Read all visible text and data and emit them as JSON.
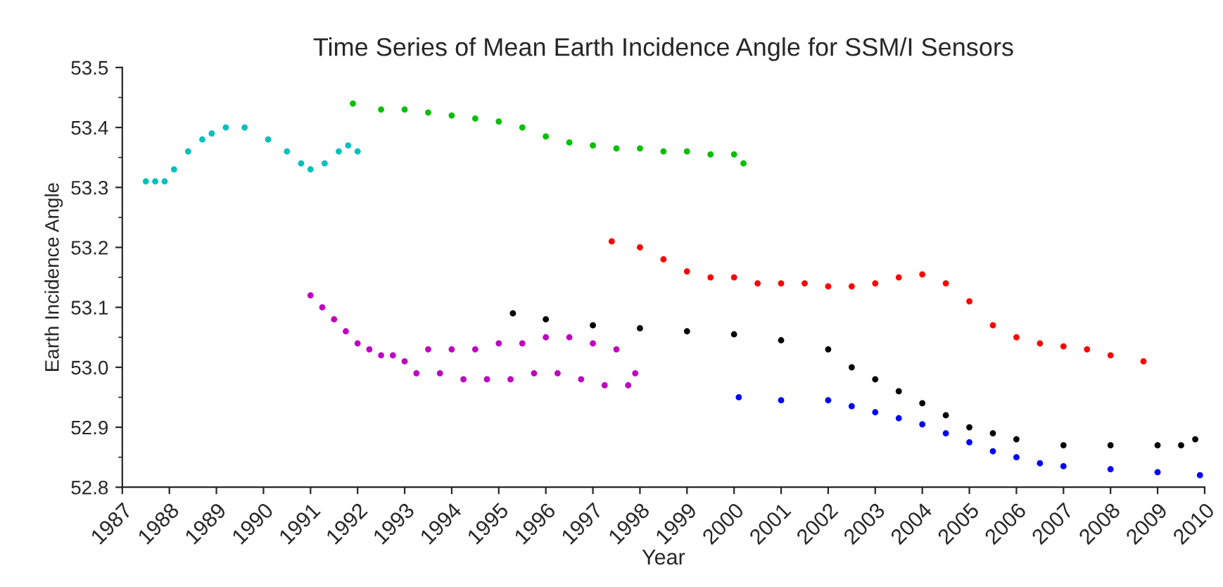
{
  "chart_data": {
    "type": "scatter",
    "title": "Time Series of Mean Earth Incidence Angle for SSM/I Sensors",
    "xlabel": "Year",
    "ylabel": "Earth Incidence Angle",
    "xlim": [
      1987,
      2010
    ],
    "xticks": [
      1987,
      1988,
      1989,
      1990,
      1991,
      1992,
      1993,
      1994,
      1995,
      1996,
      1997,
      1998,
      1999,
      2000,
      2001,
      2002,
      2003,
      2004,
      2005,
      2006,
      2007,
      2008,
      2009,
      2010
    ],
    "ylim": [
      52.8,
      53.5
    ],
    "yticks": [
      52.8,
      52.9,
      {
        "value": 53,
        "label": "53.0"
      },
      53.1,
      53.2,
      53.3,
      53.4,
      53.5
    ],
    "grid": false,
    "marker": "circle",
    "series": [
      {
        "color": "#00c0c0",
        "x": [
          1987.5,
          1987.7,
          1987.9,
          1988.1,
          1988.4,
          1988.7,
          1988.9,
          1989.2,
          1989.6,
          1990.1,
          1990.5,
          1990.8,
          1991.0,
          1991.3,
          1991.6,
          1991.8,
          1992.0
        ],
        "values": [
          53.31,
          53.31,
          53.31,
          53.33,
          53.36,
          53.38,
          53.39,
          53.4,
          53.4,
          53.38,
          53.36,
          53.34,
          53.33,
          53.34,
          53.36,
          53.37,
          53.36
        ]
      },
      {
        "color": "#00c000",
        "x": [
          1991.9,
          1992.5,
          1993,
          1993.5,
          1994,
          1994.5,
          1995,
          1995.5,
          1996,
          1996.5,
          1997,
          1997.5,
          1998,
          1998.5,
          1999,
          1999.5,
          2000,
          2000.2
        ],
        "values": [
          53.44,
          53.43,
          53.43,
          53.425,
          53.42,
          53.415,
          53.41,
          53.4,
          53.385,
          53.375,
          53.37,
          53.365,
          53.365,
          53.36,
          53.36,
          53.355,
          53.355,
          53.34
        ]
      },
      {
        "color": "#c000c0",
        "x": [
          1991.0,
          1991.25,
          1991.5,
          1991.75,
          1992,
          1992.25,
          1992.5,
          1992.75,
          1993,
          1993.25,
          1993.5,
          1993.75,
          1994,
          1994.25,
          1994.5,
          1994.75,
          1995,
          1995.25,
          1995.5,
          1995.75,
          1996,
          1996.25,
          1996.5,
          1996.75,
          1997,
          1997.25,
          1997.5,
          1997.75,
          1997.9
        ],
        "values": [
          53.12,
          53.1,
          53.08,
          53.06,
          53.04,
          53.03,
          53.02,
          53.02,
          53.01,
          52.99,
          53.03,
          52.99,
          53.03,
          52.98,
          53.03,
          52.98,
          53.04,
          52.98,
          53.04,
          52.99,
          53.05,
          52.99,
          53.05,
          52.98,
          53.04,
          52.97,
          53.03,
          52.97,
          52.99
        ]
      },
      {
        "color": "#ff0000",
        "x": [
          1997.4,
          1998.0,
          1998.5,
          1999,
          1999.5,
          2000,
          2000.5,
          2001,
          2001.5,
          2002,
          2002.5,
          2003,
          2003.5,
          2004,
          2004.5,
          2005,
          2005.5,
          2006,
          2006.5,
          2007,
          2007.5,
          2008,
          2008.7
        ],
        "values": [
          53.21,
          53.2,
          53.18,
          53.16,
          53.15,
          53.15,
          53.14,
          53.14,
          53.14,
          53.135,
          53.135,
          53.14,
          53.15,
          53.155,
          53.14,
          53.11,
          53.07,
          53.05,
          53.04,
          53.035,
          53.03,
          53.02,
          53.01
        ]
      },
      {
        "color": "#000000",
        "x": [
          1995.3,
          1996,
          1997,
          1998,
          1999,
          2000,
          2001,
          2002,
          2002.5,
          2003,
          2003.5,
          2004,
          2004.5,
          2005,
          2005.5,
          2006,
          2007,
          2008,
          2009,
          2009.5,
          2009.8
        ],
        "values": [
          53.09,
          53.08,
          53.07,
          53.065,
          53.06,
          53.055,
          53.045,
          53.03,
          53.0,
          52.98,
          52.96,
          52.94,
          52.92,
          52.9,
          52.89,
          52.88,
          52.87,
          52.87,
          52.87,
          52.87,
          52.88
        ]
      },
      {
        "color": "#0000ff",
        "x": [
          2000.1,
          2001,
          2002,
          2002.5,
          2003,
          2003.5,
          2004,
          2004.5,
          2005,
          2005.5,
          2006,
          2006.5,
          2007,
          2008,
          2009,
          2009.9
        ],
        "values": [
          52.95,
          52.945,
          52.945,
          52.935,
          52.925,
          52.915,
          52.905,
          52.89,
          52.875,
          52.86,
          52.85,
          52.84,
          52.835,
          52.83,
          52.825,
          52.82
        ]
      }
    ]
  }
}
